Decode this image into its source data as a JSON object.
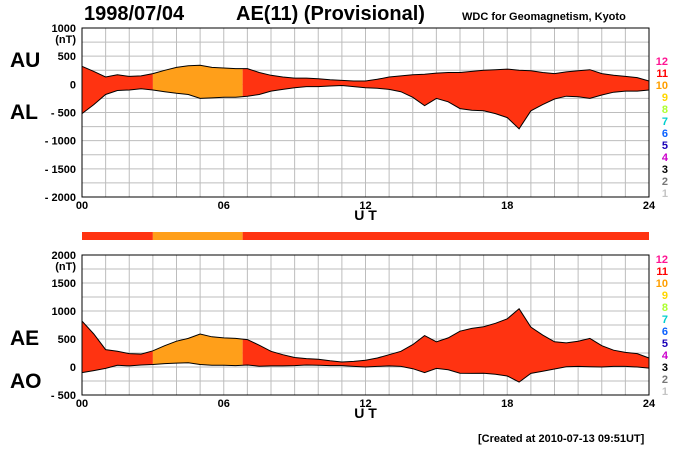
{
  "header": {
    "date": "1998/07/04",
    "index": "AE(11) (Provisional)",
    "source": "WDC for Geomagnetism, Kyoto",
    "created": "[Created at 2010-07-13 09:51UT]"
  },
  "colors": {
    "normal": "#ff3311",
    "highlight": "#ff9f1a",
    "grid": "#bdbdbd",
    "outline": "#000000"
  },
  "chart_data": [
    {
      "type": "area",
      "left_labels": [
        "AU",
        "AL"
      ],
      "ylabel": "(nT)",
      "xlabel": "U T",
      "ylim": [
        -2000,
        1000
      ],
      "yticks": [
        "1000",
        "500",
        "0",
        "- 500",
        "- 1000",
        "- 1500",
        "- 2000"
      ],
      "xlim": [
        0,
        24
      ],
      "xticks": [
        "00",
        "06",
        "12",
        "18",
        "24"
      ],
      "highlight_hours": [
        3,
        6.8
      ],
      "series": [
        {
          "name": "AU",
          "x": [
            0,
            0.5,
            1,
            1.5,
            2,
            2.5,
            3,
            3.5,
            4,
            4.5,
            5,
            5.5,
            6,
            6.5,
            7,
            7.5,
            8,
            8.5,
            9,
            9.5,
            10,
            10.5,
            11,
            11.5,
            12,
            12.5,
            13,
            13.5,
            14,
            14.5,
            15,
            15.5,
            16,
            16.5,
            17,
            17.5,
            18,
            18.5,
            19,
            19.5,
            20,
            20.5,
            21,
            21.5,
            22,
            22.5,
            23,
            23.5,
            24
          ],
          "values": [
            320,
            230,
            130,
            170,
            140,
            150,
            190,
            250,
            300,
            330,
            340,
            300,
            290,
            280,
            280,
            210,
            160,
            130,
            110,
            110,
            100,
            80,
            70,
            60,
            60,
            90,
            130,
            150,
            170,
            180,
            200,
            210,
            210,
            230,
            250,
            260,
            270,
            250,
            240,
            210,
            190,
            220,
            240,
            260,
            190,
            160,
            140,
            120,
            60
          ]
        },
        {
          "name": "AL",
          "x": [
            0,
            0.5,
            1,
            1.5,
            2,
            2.5,
            3,
            3.5,
            4,
            4.5,
            5,
            5.5,
            6,
            6.5,
            7,
            7.5,
            8,
            8.5,
            9,
            9.5,
            10,
            10.5,
            11,
            11.5,
            12,
            12.5,
            13,
            13.5,
            14,
            14.5,
            15,
            15.5,
            16,
            16.5,
            17,
            17.5,
            18,
            18.5,
            19,
            19.5,
            20,
            20.5,
            21,
            21.5,
            22,
            22.5,
            23,
            23.5,
            24
          ],
          "values": [
            -520,
            -360,
            -180,
            -110,
            -100,
            -80,
            -100,
            -130,
            -160,
            -180,
            -250,
            -240,
            -230,
            -230,
            -210,
            -180,
            -120,
            -90,
            -60,
            -40,
            -40,
            -30,
            -20,
            -40,
            -60,
            -70,
            -90,
            -130,
            -230,
            -380,
            -250,
            -310,
            -430,
            -460,
            -470,
            -520,
            -590,
            -790,
            -470,
            -360,
            -260,
            -210,
            -220,
            -250,
            -190,
            -140,
            -120,
            -120,
            -100
          ]
        }
      ]
    },
    {
      "type": "area",
      "left_labels": [
        "AE",
        "AO"
      ],
      "ylabel": "(nT)",
      "xlabel": "U T",
      "ylim": [
        -500,
        2000
      ],
      "yticks": [
        "2000",
        "1500",
        "1000",
        "500",
        "0",
        "- 500"
      ],
      "xlim": [
        0,
        24
      ],
      "xticks": [
        "00",
        "06",
        "12",
        "18",
        "24"
      ],
      "highlight_hours": [
        3,
        6.8
      ],
      "series": [
        {
          "name": "AE",
          "x": [
            0,
            0.5,
            1,
            1.5,
            2,
            2.5,
            3,
            3.5,
            4,
            4.5,
            5,
            5.5,
            6,
            6.5,
            7,
            7.5,
            8,
            8.5,
            9,
            9.5,
            10,
            10.5,
            11,
            11.5,
            12,
            12.5,
            13,
            13.5,
            14,
            14.5,
            15,
            15.5,
            16,
            16.5,
            17,
            17.5,
            18,
            18.5,
            19,
            19.5,
            20,
            20.5,
            21,
            21.5,
            22,
            22.5,
            23,
            23.5,
            24
          ],
          "values": [
            820,
            590,
            310,
            280,
            240,
            230,
            290,
            380,
            460,
            510,
            590,
            540,
            520,
            510,
            490,
            390,
            280,
            220,
            170,
            150,
            140,
            110,
            90,
            100,
            120,
            160,
            220,
            280,
            400,
            560,
            450,
            520,
            640,
            690,
            720,
            780,
            860,
            1040,
            710,
            570,
            450,
            430,
            460,
            510,
            380,
            300,
            260,
            240,
            160
          ]
        },
        {
          "name": "AO",
          "x": [
            0,
            0.5,
            1,
            1.5,
            2,
            2.5,
            3,
            3.5,
            4,
            4.5,
            5,
            5.5,
            6,
            6.5,
            7,
            7.5,
            8,
            8.5,
            9,
            9.5,
            10,
            10.5,
            11,
            11.5,
            12,
            12.5,
            13,
            13.5,
            14,
            14.5,
            15,
            15.5,
            16,
            16.5,
            17,
            17.5,
            18,
            18.5,
            19,
            19.5,
            20,
            20.5,
            21,
            21.5,
            22,
            22.5,
            23,
            23.5,
            24
          ],
          "values": [
            -100,
            -65,
            -25,
            30,
            20,
            35,
            45,
            60,
            70,
            75,
            45,
            30,
            30,
            25,
            35,
            15,
            20,
            20,
            25,
            35,
            30,
            25,
            25,
            10,
            0,
            10,
            20,
            10,
            -30,
            -100,
            -25,
            -50,
            -110,
            -115,
            -110,
            -130,
            -160,
            -270,
            -115,
            -75,
            -35,
            5,
            10,
            5,
            0,
            10,
            10,
            0,
            -20
          ]
        }
      ]
    }
  ],
  "level_labels": [
    "12",
    "11",
    "10",
    "9",
    "8",
    "7",
    "6",
    "5",
    "4",
    "3",
    "2",
    "1"
  ],
  "level_colors": [
    "#ff1493",
    "#ff0000",
    "#ff9f00",
    "#ffd700",
    "#adff2f",
    "#00cfcf",
    "#0a60ff",
    "#1a00b8",
    "#cc00cc",
    "#000000",
    "#777777",
    "#c4c4c4"
  ]
}
